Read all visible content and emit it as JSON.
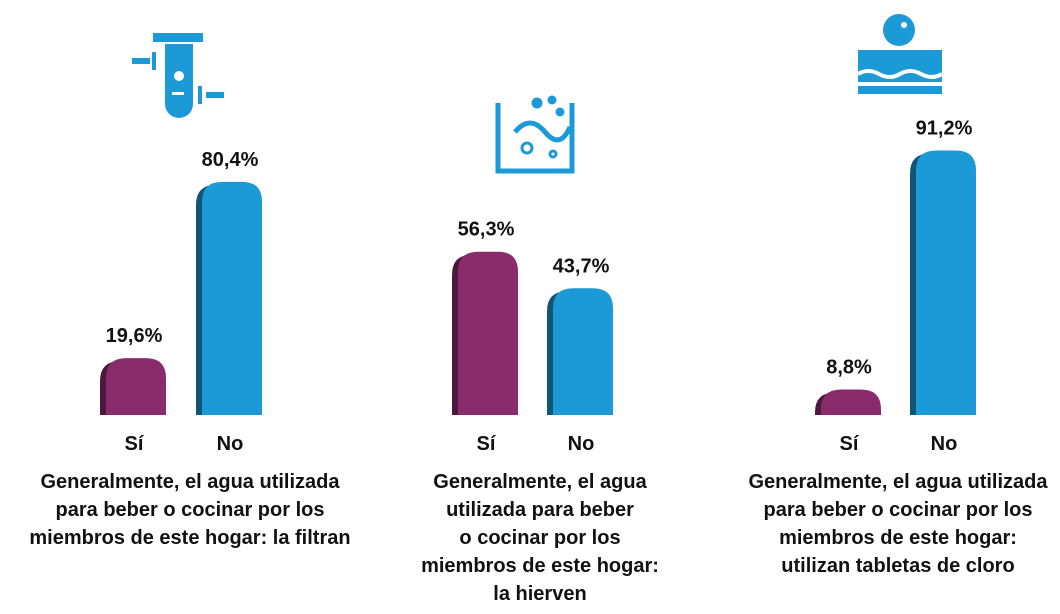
{
  "chart_data": [
    {
      "type": "bar",
      "title": "Generalmente, el agua utilizada\npara beber o cocinar por los\nmiembros de este hogar: la filtran",
      "categories": [
        "Sí",
        "No"
      ],
      "values": [
        19.6,
        80.4
      ],
      "value_labels": [
        "19,6%",
        "80,4%"
      ],
      "colors": [
        "#8a2b6b",
        "#1b9ad7"
      ]
    },
    {
      "type": "bar",
      "title": "Generalmente, el agua\nutilizada para beber\no cocinar por los\nmiembros de este hogar:\nla hierven",
      "categories": [
        "Sí",
        "No"
      ],
      "values": [
        56.3,
        43.7
      ],
      "value_labels": [
        "56,3%",
        "43,7%"
      ],
      "colors": [
        "#8a2b6b",
        "#1b9ad7"
      ]
    },
    {
      "type": "bar",
      "title": "Generalmente, el agua utilizada\npara beber o cocinar por los\nmiembros de este hogar:\nutilizan tabletas de cloro",
      "categories": [
        "Sí",
        "No"
      ],
      "values": [
        8.8,
        91.2
      ],
      "value_labels": [
        "8,8%",
        "91,2%"
      ],
      "colors": [
        "#8a2b6b",
        "#1b9ad7"
      ]
    }
  ]
}
